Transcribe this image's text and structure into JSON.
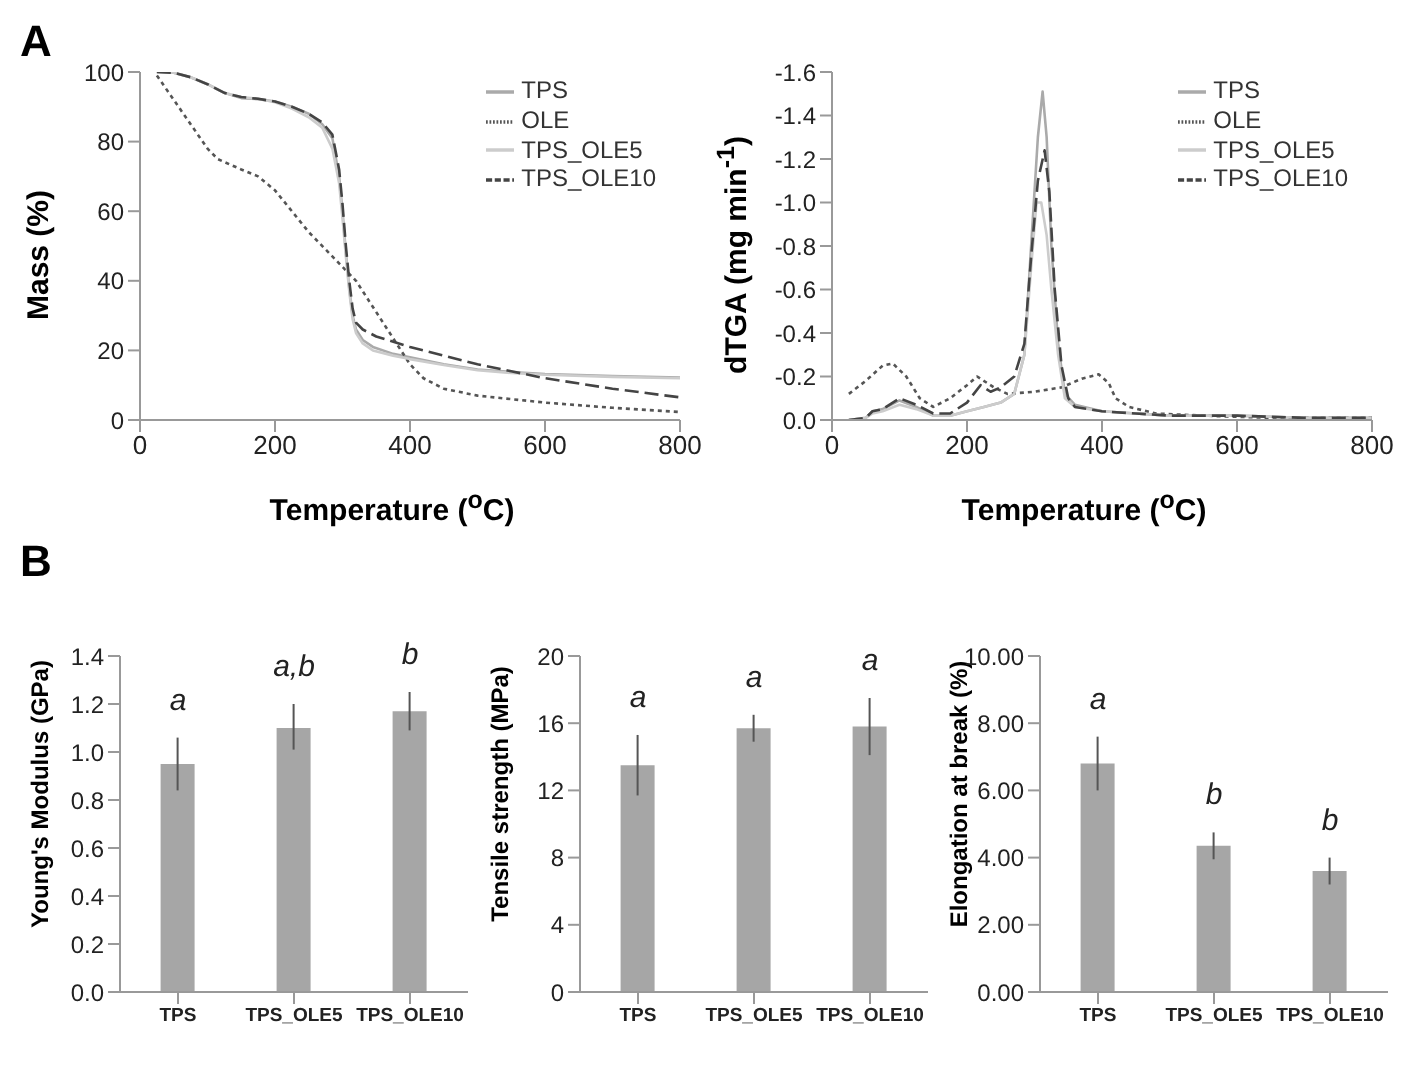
{
  "chart_data": [
    {
      "type": "line",
      "title": "A",
      "xlabel": "Temperature ($^{o}$C)",
      "ylabel": "Mass (%)",
      "xlim": [
        0,
        800
      ],
      "xticks": [
        0,
        200,
        400,
        600,
        800
      ],
      "ylim": [
        0,
        100
      ],
      "yticks": [
        0,
        20,
        40,
        60,
        80,
        100
      ],
      "legend": "top right",
      "marker": "none",
      "series": [
        {
          "name": "TPS",
          "color": "#aaaaaa",
          "line_style": "solid",
          "x": [
            25,
            50,
            75,
            100,
            125,
            150,
            175,
            200,
            225,
            250,
            270,
            285,
            295,
            300,
            305,
            310,
            315,
            320,
            330,
            345,
            375,
            400,
            450,
            500,
            550,
            600,
            700,
            800
          ],
          "values": [
            100,
            99.8,
            98.5,
            96.5,
            94,
            92.5,
            92.2,
            91.5,
            90,
            88,
            85,
            81,
            70,
            60,
            48,
            38,
            30,
            26,
            23,
            21,
            19,
            18,
            16,
            14.5,
            13.8,
            13.2,
            12.6,
            12.2
          ]
        },
        {
          "name": "OLE",
          "color": "#555555",
          "line_style": "dotted",
          "x": [
            25,
            50,
            75,
            100,
            115,
            150,
            175,
            200,
            225,
            250,
            275,
            300,
            320,
            340,
            360,
            380,
            400,
            420,
            450,
            500,
            550,
            600,
            700,
            800
          ],
          "values": [
            99,
            92,
            85,
            78,
            75,
            72,
            70,
            66,
            60,
            54,
            49,
            44,
            40,
            34,
            28,
            22,
            16,
            12,
            9,
            7,
            6,
            5,
            3.5,
            2.3
          ]
        },
        {
          "name": "TPS_OLE5",
          "color": "#cccccc",
          "line_style": "solid",
          "x": [
            25,
            50,
            75,
            100,
            125,
            150,
            175,
            200,
            225,
            250,
            270,
            285,
            295,
            300,
            305,
            310,
            315,
            320,
            330,
            345,
            375,
            400,
            450,
            500,
            550,
            600,
            700,
            800
          ],
          "values": [
            100,
            99.8,
            98.5,
            96.5,
            94,
            92.8,
            92.3,
            91.3,
            89.5,
            87,
            84,
            78,
            68,
            58,
            47,
            37,
            29,
            25,
            22,
            20,
            18.5,
            17.5,
            15.8,
            14.3,
            13.5,
            13,
            12.4,
            12
          ]
        },
        {
          "name": "TPS_OLE10",
          "color": "#444444",
          "line_style": "dashed",
          "x": [
            25,
            50,
            75,
            100,
            125,
            150,
            175,
            200,
            225,
            250,
            270,
            285,
            295,
            300,
            305,
            310,
            315,
            320,
            330,
            350,
            400,
            450,
            500,
            550,
            600,
            700,
            800
          ],
          "values": [
            100,
            99.8,
            98.5,
            96.5,
            94,
            92.8,
            92.3,
            91.5,
            90,
            88,
            85.5,
            82,
            72,
            62,
            50,
            40,
            32,
            28,
            26,
            24,
            21,
            18.5,
            16,
            14,
            12,
            9,
            6.5
          ]
        }
      ]
    },
    {
      "type": "line",
      "xlabel": "Temperature ($^{o}$C)",
      "ylabel": "dTGA (mg min$^{-1}$)",
      "xlim": [
        0,
        800
      ],
      "xticks": [
        0,
        200,
        400,
        600,
        800
      ],
      "ylim": [
        0,
        -1.6
      ],
      "yticks": [
        {
          "value": 0,
          "label": "0.0"
        },
        {
          "value": -0.2,
          "label": "-0.2"
        },
        {
          "value": -0.4,
          "label": "-0.4"
        },
        {
          "value": -0.6,
          "label": "-0.6"
        },
        {
          "value": -0.8,
          "label": "-0.8"
        },
        {
          "value": -1,
          "label": "-1.0"
        },
        {
          "value": -1.2,
          "label": "-1.2"
        },
        {
          "value": -1.4,
          "label": "-1.4"
        },
        {
          "value": -1.6,
          "label": "-1.6"
        }
      ],
      "legend": "top right",
      "marker": "none",
      "series": [
        {
          "name": "TPS",
          "color": "#aaaaaa",
          "line_style": "solid",
          "x": [
            25,
            50,
            60,
            75,
            100,
            125,
            150,
            175,
            200,
            225,
            250,
            270,
            285,
            295,
            305,
            312,
            318,
            325,
            335,
            345,
            360,
            400,
            450,
            500,
            600,
            700,
            800
          ],
          "values": [
            0,
            -0.01,
            -0.04,
            -0.05,
            -0.09,
            -0.06,
            -0.02,
            -0.02,
            -0.04,
            -0.06,
            -0.08,
            -0.12,
            -0.3,
            -0.8,
            -1.3,
            -1.51,
            -1.3,
            -0.8,
            -0.35,
            -0.12,
            -0.07,
            -0.04,
            -0.03,
            -0.02,
            -0.02,
            -0.01,
            -0.01
          ]
        },
        {
          "name": "OLE",
          "color": "#555555",
          "line_style": "dotted",
          "x": [
            25,
            50,
            75,
            90,
            110,
            130,
            150,
            175,
            200,
            215,
            240,
            260,
            300,
            340,
            370,
            395,
            410,
            420,
            440,
            480,
            550,
            650,
            800
          ],
          "values": [
            -0.12,
            -0.18,
            -0.25,
            -0.26,
            -0.2,
            -0.1,
            -0.06,
            -0.1,
            -0.16,
            -0.2,
            -0.15,
            -0.12,
            -0.13,
            -0.15,
            -0.19,
            -0.21,
            -0.17,
            -0.1,
            -0.06,
            -0.03,
            -0.02,
            -0.01,
            -0.01
          ]
        },
        {
          "name": "TPS_OLE5",
          "color": "#cccccc",
          "line_style": "solid",
          "x": [
            25,
            50,
            60,
            75,
            100,
            125,
            150,
            175,
            200,
            225,
            250,
            270,
            285,
            295,
            303,
            310,
            318,
            325,
            335,
            345,
            360,
            400,
            450,
            500,
            600,
            700,
            800
          ],
          "values": [
            0,
            -0.01,
            -0.03,
            -0.04,
            -0.07,
            -0.05,
            -0.02,
            -0.02,
            -0.04,
            -0.06,
            -0.08,
            -0.12,
            -0.3,
            -0.7,
            -1.0,
            -1.0,
            -0.85,
            -0.6,
            -0.3,
            -0.1,
            -0.06,
            -0.04,
            -0.03,
            -0.02,
            -0.02,
            -0.01,
            -0.01
          ]
        },
        {
          "name": "TPS_OLE10",
          "color": "#444444",
          "line_style": "dashed",
          "x": [
            25,
            50,
            60,
            75,
            100,
            125,
            150,
            175,
            200,
            220,
            235,
            250,
            270,
            285,
            295,
            305,
            315,
            322,
            330,
            340,
            350,
            360,
            400,
            450,
            500,
            600,
            700,
            800
          ],
          "values": [
            0,
            -0.01,
            -0.04,
            -0.05,
            -0.1,
            -0.07,
            -0.03,
            -0.03,
            -0.08,
            -0.16,
            -0.13,
            -0.15,
            -0.2,
            -0.35,
            -0.75,
            -1.1,
            -1.24,
            -1.05,
            -0.6,
            -0.25,
            -0.1,
            -0.06,
            -0.04,
            -0.03,
            -0.02,
            -0.02,
            -0.01,
            -0.01
          ]
        }
      ]
    },
    {
      "type": "bar",
      "title": "B",
      "ylabel": "Young's Modulus (GPa)",
      "annotations": [
        "a",
        "a,b",
        "b"
      ],
      "categories": [
        "TPS",
        "TPS_OLE5",
        "TPS_OLE10"
      ],
      "values": [
        0.95,
        1.1,
        1.17
      ],
      "errors": [
        [
          0.84,
          1.06
        ],
        [
          1.01,
          1.2
        ],
        [
          1.09,
          1.25
        ]
      ],
      "color": "#a6a6a6",
      "ylim": [
        0,
        1.4
      ],
      "yticks": [
        {
          "value": 0,
          "label": "0.0"
        },
        {
          "value": 0.2,
          "label": "0.2"
        },
        {
          "value": 0.4,
          "label": "0.4"
        },
        {
          "value": 0.6,
          "label": "0.6"
        },
        {
          "value": 0.8,
          "label": "0.8"
        },
        {
          "value": 1,
          "label": "1.0"
        },
        {
          "value": 1.2,
          "label": "1.2"
        },
        {
          "value": 1.4,
          "label": "1.4"
        }
      ]
    },
    {
      "type": "bar",
      "ylabel": "Tensile strength (MPa)",
      "annotations": [
        "a",
        "a",
        "a"
      ],
      "categories": [
        "TPS",
        "TPS_OLE5",
        "TPS_OLE10"
      ],
      "values": [
        13.5,
        15.7,
        15.8
      ],
      "errors": [
        [
          11.7,
          15.3
        ],
        [
          14.9,
          16.5
        ],
        [
          14.1,
          17.5
        ]
      ],
      "color": "#a6a6a6",
      "ylim": [
        0,
        20
      ],
      "yticks": [
        0,
        4,
        8,
        12,
        16,
        20
      ]
    },
    {
      "type": "bar",
      "ylabel": "Elongation at break (%)",
      "annotations": [
        "a",
        "b",
        "b"
      ],
      "categories": [
        "TPS",
        "TPS_OLE5",
        "TPS_OLE10"
      ],
      "values": [
        6.8,
        4.35,
        3.6
      ],
      "errors": [
        [
          6.0,
          7.6
        ],
        [
          3.95,
          4.75
        ],
        [
          3.2,
          4.0
        ]
      ],
      "color": "#a6a6a6",
      "ylim": [
        0,
        10
      ],
      "yticks": [
        {
          "value": 0,
          "label": "0.00"
        },
        {
          "value": 2,
          "label": "2.00"
        },
        {
          "value": 4,
          "label": "4.00"
        },
        {
          "value": 6,
          "label": "6.00"
        },
        {
          "value": 8,
          "label": "8.00"
        },
        {
          "value": 10,
          "label": "10.00"
        }
      ]
    }
  ]
}
